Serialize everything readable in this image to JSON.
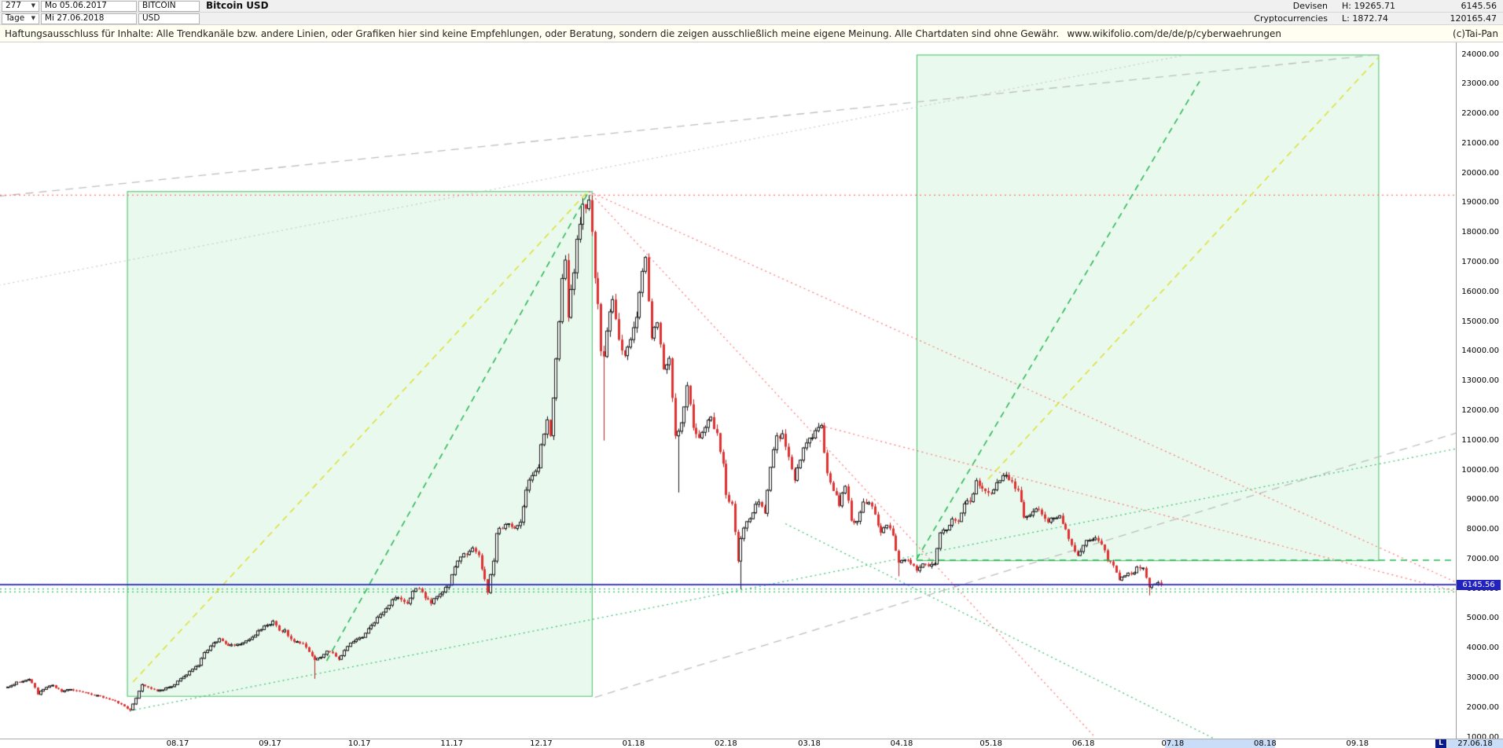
{
  "header": {
    "bars_value": "277",
    "dropdown_arrow": "▼",
    "range_start": "Mo 05.06.2017",
    "symbol": "BITCOIN",
    "title": "Bitcoin USD",
    "period_value": "Tage",
    "range_end": "Mi 27.06.2018",
    "currency": "USD",
    "right": {
      "row1": {
        "market": "Devisen",
        "high": "H: 19265.71",
        "value": "6145.56"
      },
      "row2": {
        "category": "Cryptocurrencies",
        "low": "L: 1872.74",
        "value": "120165.47"
      }
    }
  },
  "disclaimer": {
    "text": "Haftungsausschluss für Inhalte: Alle Trendkanäle bzw. andere Linien, oder Grafiken hier sind keine Empfehlungen, oder Beratung, sondern die zeigen ausschließlich meine eigene Meinung. Alle Chartdaten sind ohne Gewähr.",
    "url": "www.wikifolio.com/de/de/p/cyberwaehrungen",
    "copyright": "(c)Tai-Pan"
  },
  "axis_badges": {
    "price": "6145.56",
    "last_marker": "L",
    "last_date": "27.06.18"
  },
  "chart_data": {
    "type": "candlestick",
    "title": "Bitcoin USD",
    "period_high": 19265.71,
    "period_low": 1872.74,
    "last_close": 6145.56,
    "price_line": 6145.56,
    "seed": 20180627,
    "first_open": 2680,
    "y_axis": {
      "min": 1000,
      "max": 24000,
      "step": 1000
    },
    "x_axis": {
      "labels": [
        {
          "label": "08.17",
          "day": 57
        },
        {
          "label": "09.17",
          "day": 88
        },
        {
          "label": "10.17",
          "day": 118
        },
        {
          "label": "11.17",
          "day": 149
        },
        {
          "label": "12.17",
          "day": 179
        },
        {
          "label": "01.18",
          "day": 210
        },
        {
          "label": "02.18",
          "day": 241
        },
        {
          "label": "03.18",
          "day": 269
        },
        {
          "label": "04.18",
          "day": 300
        },
        {
          "label": "05.18",
          "day": 330
        },
        {
          "label": "06.18",
          "day": 361
        },
        {
          "label": "07.18",
          "day": 391
        },
        {
          "label": "08.18",
          "day": 422
        },
        {
          "label": "09.18",
          "day": 453
        }
      ]
    },
    "h_lines": [
      {
        "p": 19265.71,
        "s": "red-dot"
      },
      {
        "p": 6000,
        "s": "green-dot"
      },
      {
        "p": 5900,
        "s": "green-dot"
      }
    ],
    "boxes": [
      {
        "d1": 40,
        "p1": 2400,
        "d2": 196,
        "p2": 19400
      },
      {
        "d1": 305,
        "p1": 6968,
        "d2": 460,
        "p2": 24000
      }
    ],
    "box_fill": "rgba(120,220,140,0.16)",
    "box_border": "#3fbf63",
    "t_lines": [
      {
        "d1": -3,
        "p1": 19230,
        "d2": 460,
        "p2": 24000,
        "s": "gray-dash"
      },
      {
        "d1": -3,
        "p1": 16230,
        "d2": 396,
        "p2": 24000,
        "s": "gray-dot"
      },
      {
        "d1": 197,
        "p1": 2350,
        "d2": 499,
        "p2": 11650,
        "s": "gray-dash"
      },
      {
        "d1": 41,
        "p1": 1900,
        "d2": 499,
        "p2": 10980,
        "s": "green-dot"
      },
      {
        "d1": 261,
        "p1": 8200,
        "d2": 420,
        "p2": 200,
        "s": "green-dot"
      },
      {
        "d1": 195,
        "p1": 19390,
        "d2": 365,
        "p2": 1000,
        "s": "red-dot"
      },
      {
        "d1": 195,
        "p1": 19390,
        "d2": 499,
        "p2": 5645,
        "s": "red-dot"
      },
      {
        "d1": 273,
        "p1": 11500,
        "d2": 499,
        "p2": 5580,
        "s": "red-dot"
      },
      {
        "d1": 42,
        "p1": 2870,
        "d2": 194,
        "p2": 19320,
        "s": "yellow-dash"
      },
      {
        "d1": 107,
        "p1": 3580,
        "d2": 195,
        "p2": 19390,
        "s": "green-dash"
      },
      {
        "d1": 305,
        "p1": 7000,
        "d2": 400,
        "p2": 23100,
        "s": "green-dash"
      },
      {
        "d1": 329,
        "p1": 9700,
        "d2": 460,
        "p2": 23900,
        "s": "yellow-dash"
      },
      {
        "d1": 305,
        "p1": 6968,
        "d2": 499,
        "p2": 6968,
        "s": "green-dash"
      }
    ],
    "styles": {
      "gray-dash": {
        "color": "#bdbdbd",
        "dash": [
          10,
          7
        ],
        "width": 1.3,
        "under": true
      },
      "gray-dot": {
        "color": "#c8c8c8",
        "dash": [
          2,
          4
        ],
        "width": 1.2,
        "under": true
      },
      "green-dot": {
        "color": "#2fbf6b",
        "dash": [
          2,
          4
        ],
        "width": 1.2,
        "under": true
      },
      "red-dot": {
        "color": "#ff7272",
        "dash": [
          2,
          4
        ],
        "width": 1.2,
        "under": true
      },
      "green-dash": {
        "color": "#22b44f",
        "dash": [
          8,
          6
        ],
        "width": 1.5,
        "under": false
      },
      "yellow-dash": {
        "color": "#dede2e",
        "dash": [
          8,
          6
        ],
        "width": 1.5,
        "under": false
      },
      "blue-solid": {
        "color": "#2424c8",
        "dash": [],
        "width": 1.7,
        "under": false
      }
    },
    "candle_colors": {
      "up_fill": "#ffffff",
      "up_stroke": "#141414",
      "down_fill": "#e03131",
      "down_stroke": "#b32020"
    },
    "forced": {
      "41": {
        "low": 1872.74
      },
      "103": {
        "low": 2975
      },
      "195": {
        "high": 19265.71
      },
      "200": {
        "low": 11000
      },
      "225": {
        "low": 9250
      },
      "246": {
        "low": 5995
      },
      "299": {
        "low": 6430
      },
      "383": {
        "low": 5785
      }
    },
    "anchors": [
      [
        0,
        2700
      ],
      [
        3,
        2870
      ],
      [
        7,
        2960
      ],
      [
        9,
        2680
      ],
      [
        10,
        2450
      ],
      [
        12,
        2620
      ],
      [
        15,
        2760
      ],
      [
        18,
        2540
      ],
      [
        21,
        2620
      ],
      [
        24,
        2550
      ],
      [
        27,
        2480
      ],
      [
        30,
        2420
      ],
      [
        33,
        2320
      ],
      [
        36,
        2230
      ],
      [
        39,
        2050
      ],
      [
        41,
        1930
      ],
      [
        43,
        2320
      ],
      [
        45,
        2780
      ],
      [
        47,
        2690
      ],
      [
        50,
        2560
      ],
      [
        53,
        2670
      ],
      [
        56,
        2780
      ],
      [
        59,
        3050
      ],
      [
        61,
        3230
      ],
      [
        64,
        3430
      ],
      [
        66,
        3860
      ],
      [
        68,
        4080
      ],
      [
        71,
        4330
      ],
      [
        73,
        4150
      ],
      [
        76,
        4100
      ],
      [
        78,
        4140
      ],
      [
        81,
        4300
      ],
      [
        84,
        4590
      ],
      [
        87,
        4780
      ],
      [
        89,
        4920
      ],
      [
        91,
        4600
      ],
      [
        93,
        4620
      ],
      [
        95,
        4310
      ],
      [
        97,
        4230
      ],
      [
        99,
        4160
      ],
      [
        101,
        3880
      ],
      [
        103,
        3610
      ],
      [
        105,
        3700
      ],
      [
        107,
        3910
      ],
      [
        109,
        3840
      ],
      [
        111,
        3630
      ],
      [
        113,
        3930
      ],
      [
        115,
        4180
      ],
      [
        117,
        4300
      ],
      [
        119,
        4370
      ],
      [
        122,
        4770
      ],
      [
        125,
        5140
      ],
      [
        127,
        5340
      ],
      [
        129,
        5640
      ],
      [
        131,
        5710
      ],
      [
        134,
        5510
      ],
      [
        136,
        5920
      ],
      [
        138,
        6010
      ],
      [
        140,
        5690
      ],
      [
        142,
        5510
      ],
      [
        144,
        5750
      ],
      [
        146,
        5900
      ],
      [
        148,
        6130
      ],
      [
        150,
        6750
      ],
      [
        152,
        7080
      ],
      [
        154,
        7160
      ],
      [
        156,
        7380
      ],
      [
        158,
        7140
      ],
      [
        160,
        6330
      ],
      [
        161,
        5880
      ],
      [
        163,
        6940
      ],
      [
        164,
        7870
      ],
      [
        166,
        8040
      ],
      [
        168,
        8200
      ],
      [
        170,
        8040
      ],
      [
        172,
        8250
      ],
      [
        174,
        9330
      ],
      [
        176,
        9820
      ],
      [
        178,
        10080
      ],
      [
        179,
        10860
      ],
      [
        181,
        11700
      ],
      [
        182,
        11160
      ],
      [
        184,
        13750
      ],
      [
        186,
        16460
      ],
      [
        187,
        17080
      ],
      [
        188,
        15150
      ],
      [
        190,
        16650
      ],
      [
        191,
        17780
      ],
      [
        193,
        18960
      ],
      [
        195,
        19100
      ],
      [
        196,
        18030
      ],
      [
        197,
        16470
      ],
      [
        198,
        15600
      ],
      [
        199,
        14010
      ],
      [
        200,
        13830
      ],
      [
        201,
        14690
      ],
      [
        203,
        15750
      ],
      [
        205,
        14400
      ],
      [
        207,
        13860
      ],
      [
        209,
        14400
      ],
      [
        211,
        15150
      ],
      [
        213,
        16700
      ],
      [
        214,
        17170
      ],
      [
        216,
        14450
      ],
      [
        218,
        14970
      ],
      [
        220,
        13400
      ],
      [
        222,
        13770
      ],
      [
        224,
        11160
      ],
      [
        226,
        11600
      ],
      [
        228,
        12850
      ],
      [
        230,
        11430
      ],
      [
        232,
        11090
      ],
      [
        234,
        11440
      ],
      [
        236,
        11790
      ],
      [
        238,
        11250
      ],
      [
        240,
        10220
      ],
      [
        241,
        9170
      ],
      [
        243,
        8870
      ],
      [
        245,
        6940
      ],
      [
        246,
        7700
      ],
      [
        248,
        8270
      ],
      [
        250,
        8570
      ],
      [
        252,
        8930
      ],
      [
        254,
        8550
      ],
      [
        256,
        10100
      ],
      [
        258,
        11160
      ],
      [
        260,
        11230
      ],
      [
        262,
        10450
      ],
      [
        264,
        9660
      ],
      [
        266,
        10340
      ],
      [
        268,
        10920
      ],
      [
        270,
        11090
      ],
      [
        272,
        11440
      ],
      [
        273,
        11510
      ],
      [
        275,
        9900
      ],
      [
        277,
        9300
      ],
      [
        279,
        8800
      ],
      [
        281,
        9460
      ],
      [
        283,
        8300
      ],
      [
        285,
        8280
      ],
      [
        287,
        8930
      ],
      [
        289,
        8910
      ],
      [
        291,
        8510
      ],
      [
        293,
        7900
      ],
      [
        295,
        8150
      ],
      [
        297,
        7800
      ],
      [
        299,
        6890
      ],
      [
        301,
        6980
      ],
      [
        303,
        6850
      ],
      [
        305,
        6620
      ],
      [
        307,
        6850
      ],
      [
        309,
        6770
      ],
      [
        311,
        6840
      ],
      [
        313,
        7890
      ],
      [
        315,
        7990
      ],
      [
        317,
        8360
      ],
      [
        319,
        8270
      ],
      [
        321,
        8870
      ],
      [
        323,
        8940
      ],
      [
        325,
        9650
      ],
      [
        327,
        9380
      ],
      [
        329,
        9240
      ],
      [
        331,
        9340
      ],
      [
        333,
        9650
      ],
      [
        335,
        9830
      ],
      [
        337,
        9620
      ],
      [
        339,
        9330
      ],
      [
        341,
        8410
      ],
      [
        343,
        8480
      ],
      [
        345,
        8700
      ],
      [
        347,
        8510
      ],
      [
        349,
        8250
      ],
      [
        351,
        8390
      ],
      [
        353,
        8470
      ],
      [
        355,
        8010
      ],
      [
        357,
        7480
      ],
      [
        359,
        7130
      ],
      [
        361,
        7470
      ],
      [
        363,
        7640
      ],
      [
        365,
        7720
      ],
      [
        367,
        7500
      ],
      [
        369,
        6940
      ],
      [
        371,
        6790
      ],
      [
        373,
        6300
      ],
      [
        375,
        6450
      ],
      [
        377,
        6500
      ],
      [
        379,
        6740
      ],
      [
        381,
        6710
      ],
      [
        383,
        6060
      ],
      [
        385,
        6170
      ],
      [
        387,
        6145.56
      ]
    ]
  }
}
